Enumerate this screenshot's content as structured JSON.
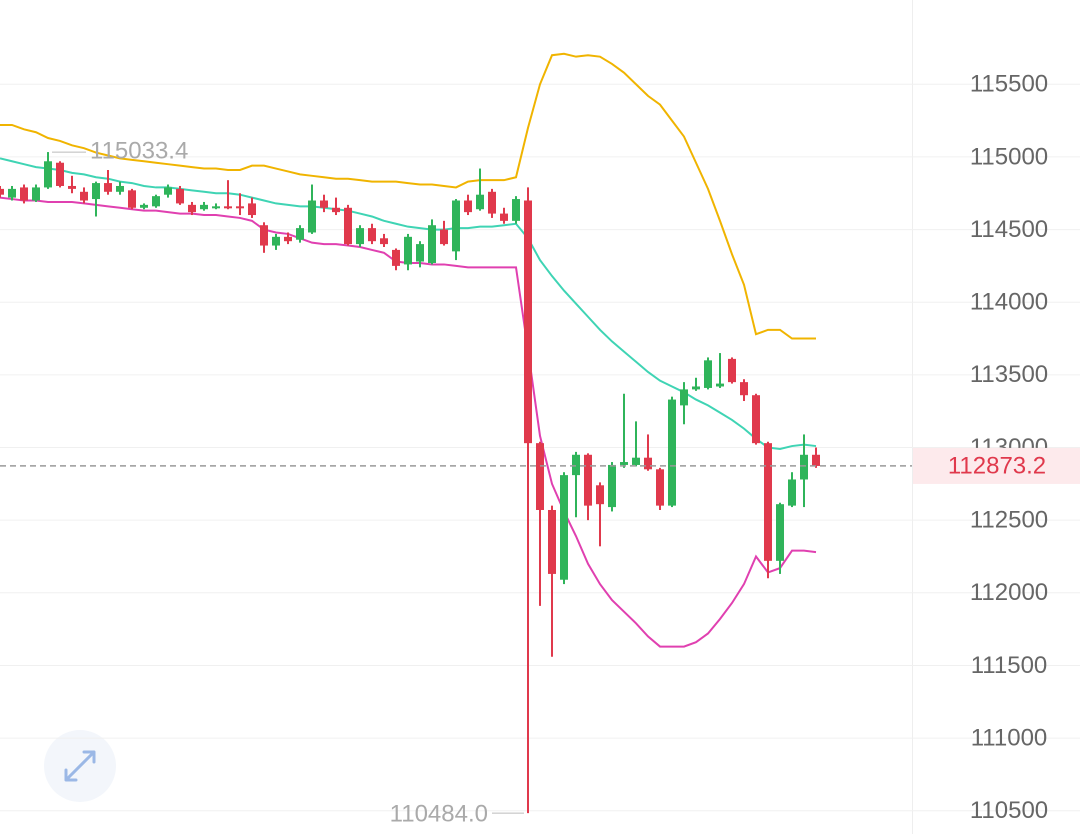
{
  "chart_data": {
    "type": "candlestick",
    "ylim": [
      110340,
      116080
    ],
    "yticks": [
      110500,
      111000,
      111500,
      112000,
      112500,
      113000,
      113500,
      114000,
      114500,
      115000,
      115500
    ],
    "grid": true,
    "up_color": "#2fb45a",
    "down_color": "#e0394c",
    "open": [
      114780,
      114720,
      114790,
      114700,
      114790,
      114960,
      114800,
      114760,
      114710,
      114820,
      114760,
      114770,
      114650,
      114660,
      114740,
      114780,
      114670,
      114640,
      114650,
      114660,
      114660,
      114680,
      114530,
      114390,
      114450,
      114430,
      114480,
      114700,
      114650,
      114650,
      114400,
      114510,
      114440,
      114360,
      114260,
      114280,
      114270,
      114500,
      114350,
      114700,
      114640,
      114760,
      114610,
      114560,
      114700,
      113030,
      112570,
      112090,
      112810,
      112950,
      112740,
      112590,
      112880,
      112880,
      112930,
      112850,
      112600,
      113290,
      113400,
      113410,
      113420,
      113610,
      113450,
      113360,
      113030,
      112220,
      112600,
      112780,
      112950
    ],
    "high": [
      114800,
      114800,
      114810,
      114810,
      115033.4,
      114970,
      114870,
      114790,
      114830,
      114910,
      114830,
      114780,
      114680,
      114740,
      114810,
      114800,
      114690,
      114690,
      114680,
      114840,
      114750,
      114720,
      114550,
      114470,
      114480,
      114530,
      114810,
      114740,
      114720,
      114670,
      114530,
      114540,
      114470,
      114370,
      114470,
      114420,
      114570,
      114560,
      114710,
      114740,
      114920,
      114780,
      114650,
      114730,
      114790,
      113040,
      112600,
      112830,
      112970,
      112960,
      112760,
      112900,
      113370,
      113180,
      113090,
      112860,
      113350,
      113450,
      113480,
      113620,
      113650,
      113620,
      113470,
      113370,
      113040,
      112620,
      112830,
      113090,
      113000
    ],
    "low": [
      114720,
      114700,
      114680,
      114690,
      114780,
      114790,
      114750,
      114680,
      114590,
      114740,
      114740,
      114640,
      114640,
      114650,
      114720,
      114670,
      114600,
      114630,
      114640,
      114640,
      114600,
      114580,
      114340,
      114360,
      114400,
      114410,
      114470,
      114620,
      114600,
      114390,
      114380,
      114400,
      114380,
      114220,
      114220,
      114240,
      114260,
      114390,
      114290,
      114600,
      114630,
      114580,
      114540,
      114540,
      110484,
      111910,
      111560,
      112060,
      112520,
      112500,
      112320,
      112560,
      112860,
      112870,
      112840,
      112570,
      112590,
      113160,
      113390,
      113400,
      113410,
      113440,
      113320,
      113020,
      112100,
      112130,
      112590,
      112590,
      112860
    ],
    "close": [
      114740,
      114780,
      114700,
      114790,
      114970,
      114800,
      114780,
      114700,
      114820,
      114760,
      114800,
      114650,
      114670,
      114730,
      114790,
      114680,
      114620,
      114670,
      114660,
      114650,
      114650,
      114600,
      114390,
      114450,
      114420,
      114510,
      114700,
      114650,
      114620,
      114400,
      114510,
      114420,
      114400,
      114250,
      114450,
      114400,
      114530,
      114400,
      114700,
      114620,
      114740,
      114610,
      114560,
      114710,
      113030,
      112570,
      112130,
      112810,
      112950,
      112600,
      112610,
      112880,
      112900,
      112930,
      112850,
      112600,
      113330,
      113400,
      113420,
      113600,
      113440,
      113450,
      113360,
      113030,
      112220,
      112610,
      112780,
      112950,
      112873.2
    ],
    "lines": [
      {
        "color": "#f0b400",
        "values": [
          115220,
          115220,
          115190,
          115170,
          115130,
          115110,
          115080,
          115060,
          115030,
          115010,
          114990,
          114980,
          114970,
          114960,
          114950,
          114940,
          114930,
          114920,
          114920,
          114910,
          114910,
          114940,
          114940,
          114920,
          114900,
          114880,
          114870,
          114860,
          114850,
          114850,
          114840,
          114830,
          114830,
          114830,
          114820,
          114810,
          114810,
          114800,
          114790,
          114830,
          114840,
          114840,
          114840,
          114860,
          115200,
          115500,
          115700,
          115710,
          115690,
          115700,
          115690,
          115640,
          115580,
          115500,
          115420,
          115360,
          115250,
          115140,
          114960,
          114780,
          114560,
          114330,
          114120,
          113780,
          113810,
          113810,
          113750,
          113750,
          113750
        ]
      },
      {
        "color": "#3fd4b4",
        "values": [
          114990,
          114970,
          114950,
          114930,
          114920,
          114910,
          114890,
          114880,
          114860,
          114850,
          114830,
          114820,
          114800,
          114790,
          114790,
          114780,
          114770,
          114760,
          114750,
          114750,
          114740,
          114720,
          114700,
          114680,
          114670,
          114660,
          114660,
          114650,
          114640,
          114630,
          114610,
          114590,
          114560,
          114540,
          114520,
          114510,
          114500,
          114500,
          114510,
          114510,
          114520,
          114520,
          114530,
          114540,
          114440,
          114290,
          114180,
          114080,
          113990,
          113900,
          113810,
          113730,
          113660,
          113590,
          113520,
          113460,
          113420,
          113380,
          113330,
          113290,
          113240,
          113190,
          113130,
          113060,
          113000,
          112990,
          113010,
          113020,
          113010
        ]
      },
      {
        "color": "#e040b0",
        "values": [
          114720,
          114710,
          114700,
          114700,
          114690,
          114690,
          114690,
          114680,
          114670,
          114660,
          114650,
          114640,
          114630,
          114630,
          114620,
          114610,
          114610,
          114600,
          114600,
          114590,
          114580,
          114560,
          114500,
          114480,
          114470,
          114440,
          114410,
          114400,
          114400,
          114390,
          114380,
          114360,
          114340,
          114280,
          114270,
          114270,
          114260,
          114260,
          114250,
          114240,
          114240,
          114240,
          114240,
          114240,
          113670,
          113080,
          112750,
          112560,
          112390,
          112200,
          112060,
          111950,
          111870,
          111790,
          111700,
          111630,
          111630,
          111630,
          111660,
          111720,
          111820,
          111930,
          112060,
          112250,
          112140,
          112170,
          112290,
          112290,
          112280
        ]
      }
    ],
    "max_label": 115033.4,
    "min_label": {
      "value": 110484,
      "label": "110484.0"
    },
    "last_price": 112873.2
  }
}
